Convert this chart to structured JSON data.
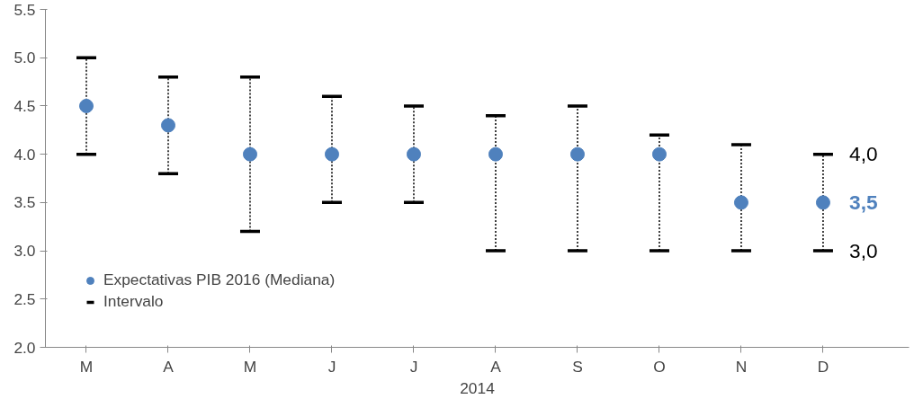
{
  "chart_data": {
    "type": "scatter",
    "xlabel": "2014",
    "categories": [
      "M",
      "A",
      "M",
      "J",
      "J",
      "A",
      "S",
      "O",
      "N",
      "D"
    ],
    "series": [
      {
        "name": "Expectativas PIB 2016 (Mediana)",
        "color": "#4f81bd",
        "values": [
          4.5,
          4.3,
          4.0,
          4.0,
          4.0,
          4.0,
          4.0,
          4.0,
          3.5,
          3.5
        ],
        "errors": [
          [
            4.0,
            5.0
          ],
          [
            3.8,
            4.8
          ],
          [
            3.2,
            4.8
          ],
          [
            3.5,
            4.6
          ],
          [
            3.5,
            4.5
          ],
          [
            3.0,
            4.4
          ],
          [
            3.0,
            4.5
          ],
          [
            3.0,
            4.2
          ],
          [
            3.0,
            4.1
          ],
          [
            3.0,
            4.0
          ]
        ]
      }
    ],
    "ylim": [
      2.0,
      5.5
    ],
    "yticks": [
      {
        "value": 2.0,
        "label": "2.0"
      },
      {
        "value": 2.5,
        "label": "2.5"
      },
      {
        "value": 3.0,
        "label": "3.0"
      },
      {
        "value": 3.5,
        "label": "3.5"
      },
      {
        "value": 4.0,
        "label": "4.0"
      },
      {
        "value": 4.5,
        "label": "4.5"
      },
      {
        "value": 5.0,
        "label": "5.0"
      },
      {
        "value": 5.5,
        "label": "5.5"
      }
    ],
    "annotations": [
      "Intervalo",
      {
        "text": "4,0",
        "x": "D",
        "y": 4.0
      },
      {
        "text": "3,5",
        "x": "D",
        "y": 3.5
      },
      {
        "text": "3,0",
        "x": "D",
        "y": 3.0
      }
    ],
    "legend": "bottom left",
    "marker": "circle",
    "grid": false
  }
}
